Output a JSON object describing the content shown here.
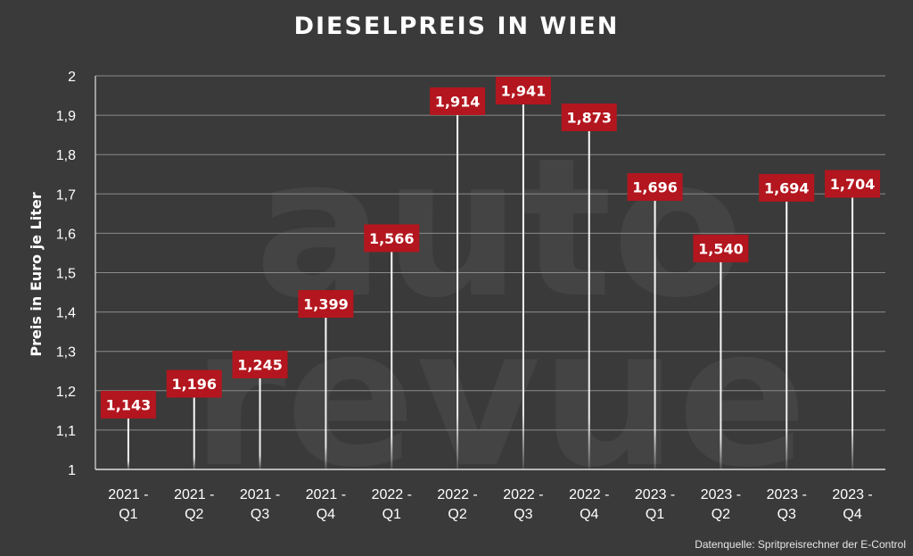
{
  "chart_data": {
    "type": "bar",
    "title": "DIESELPREIS IN WIEN",
    "ylabel": "Preis in Euro je Liter",
    "xlabel": "",
    "categories": [
      [
        "2021 -",
        "Q1"
      ],
      [
        "2021 -",
        "Q2"
      ],
      [
        "2021 -",
        "Q3"
      ],
      [
        "2021 -",
        "Q4"
      ],
      [
        "2022 -",
        "Q1"
      ],
      [
        "2022 -",
        "Q2"
      ],
      [
        "2022 -",
        "Q3"
      ],
      [
        "2022 -",
        "Q4"
      ],
      [
        "2023 -",
        "Q1"
      ],
      [
        "2023 -",
        "Q2"
      ],
      [
        "2023 -",
        "Q3"
      ],
      [
        "2023 -",
        "Q4"
      ]
    ],
    "values": [
      1.143,
      1.196,
      1.245,
      1.399,
      1.566,
      1.914,
      1.941,
      1.873,
      1.696,
      1.54,
      1.694,
      1.704
    ],
    "value_labels": [
      "1,143",
      "1,196",
      "1,245",
      "1,399",
      "1,566",
      "1,914",
      "1,941",
      "1,873",
      "1,696",
      "1,540",
      "1,694",
      "1,704"
    ],
    "ylim": [
      1,
      2
    ],
    "yticks": [
      "1",
      "1,1",
      "1,2",
      "1,3",
      "1,4",
      "1,5",
      "1,6",
      "1,7",
      "1,8",
      "1,9",
      "2"
    ],
    "grid": true,
    "legend": "none",
    "colors": {
      "background": "#3a3a3a",
      "label_box": "#b3161e",
      "text": "#ffffff",
      "grid": "#8a8a8a",
      "axis": "#e0e0e0"
    }
  },
  "watermark": "auto revue",
  "source": "Datenquelle: Spritpreisrechner der E-Control"
}
